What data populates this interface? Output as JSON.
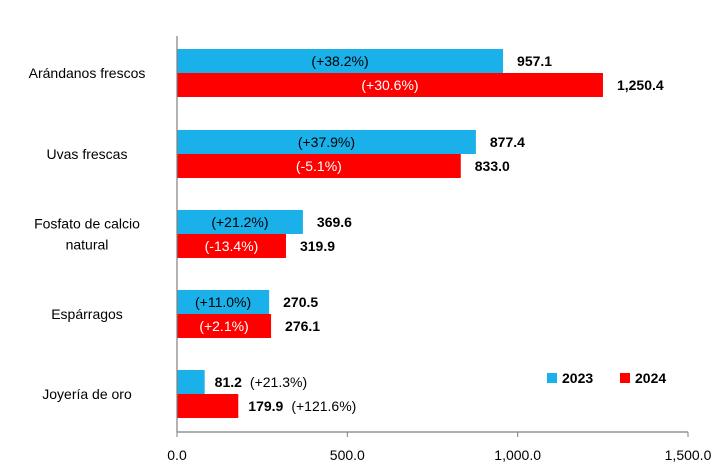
{
  "chart_data": {
    "type": "bar",
    "orientation": "horizontal",
    "title": "",
    "xlabel": "",
    "ylabel": "",
    "xlim": [
      0,
      1500
    ],
    "xticks": [
      0,
      500,
      1000,
      1500
    ],
    "xtick_labels": [
      "0.0",
      "500.0",
      "1,000.0",
      "1,500.0"
    ],
    "grid": false,
    "legend_position": "right",
    "categories": [
      [
        "Arándanos frescos"
      ],
      [
        "Uvas frescas"
      ],
      [
        "Fosfato de calcio",
        "natural"
      ],
      [
        "Espárragos"
      ],
      [
        "Joyería de oro"
      ]
    ],
    "series": [
      {
        "name": "2023",
        "color": "#1AB0EA",
        "values": [
          957.1,
          877.4,
          369.6,
          270.5,
          81.2
        ],
        "value_labels": [
          "957.1",
          "877.4",
          "369.6",
          "270.5",
          "81.2"
        ],
        "change_labels": [
          "(+38.2%)",
          "(+37.9%)",
          "(+21.2%)",
          "(+11.0%)",
          "(+21.3%)"
        ]
      },
      {
        "name": "2024",
        "color": "#FF0000",
        "values": [
          1250.4,
          833.0,
          319.9,
          276.1,
          179.9
        ],
        "value_labels": [
          "1,250.4",
          "833.0",
          "319.9",
          "276.1",
          "179.9"
        ],
        "change_labels": [
          "(+30.6%)",
          "(-5.1%)",
          "(-13.4%)",
          "(+2.1%)",
          "(+121.6%)"
        ]
      }
    ]
  }
}
